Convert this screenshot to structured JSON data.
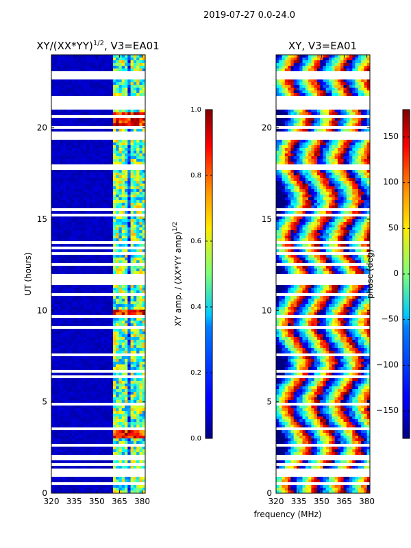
{
  "suptitle": "2019-07-27 0.0-24.0",
  "chart_data": [
    {
      "type": "heatmap",
      "title": "XY/(XX*YY)",
      "title_exponent": "1/2",
      "title_suffix": ", V3=EA01",
      "xlabel": "",
      "ylabel": "UT (hours)",
      "xlim": [
        320,
        382
      ],
      "ylim": [
        0,
        24
      ],
      "xticks": [
        "320",
        "335",
        "350",
        "365",
        "380"
      ],
      "xtick_values": [
        320,
        335,
        350,
        365,
        380
      ],
      "yticks": [
        "0",
        "5",
        "10",
        "15",
        "20"
      ],
      "ytick_values": [
        0,
        5,
        10,
        15,
        20
      ],
      "colorbar": {
        "label": "XY amp. / (XX*YY amp)",
        "label_exponent": "1/2",
        "range": [
          0.0,
          1.0
        ],
        "ticks": [
          "0.0",
          "0.2",
          "0.4",
          "0.6",
          "0.8",
          "1.0"
        ],
        "tick_values": [
          0.0,
          0.2,
          0.4,
          0.6,
          0.8,
          1.0
        ],
        "colormap": "jet"
      }
    },
    {
      "type": "heatmap",
      "title": "XY, V3=EA01",
      "xlabel": "frequency (MHz)",
      "ylabel": "",
      "xlim": [
        320,
        382
      ],
      "ylim": [
        0,
        24
      ],
      "xticks": [
        "320",
        "335",
        "350",
        "365",
        "380"
      ],
      "xtick_values": [
        320,
        335,
        350,
        365,
        380
      ],
      "yticks": [
        "0",
        "5",
        "10",
        "15",
        "20"
      ],
      "ytick_values": [
        0,
        5,
        10,
        15,
        20
      ],
      "colorbar": {
        "label": "phase (deg)",
        "range": [
          -180,
          180
        ],
        "ticks": [
          "−150",
          "−100",
          "−50",
          "0",
          "50",
          "100",
          "150"
        ],
        "tick_values": [
          -150,
          -100,
          -50,
          0,
          50,
          100,
          150
        ],
        "colormap": "jet"
      }
    }
  ],
  "colors": {
    "background": "#ffffff",
    "axis": "#000000"
  }
}
